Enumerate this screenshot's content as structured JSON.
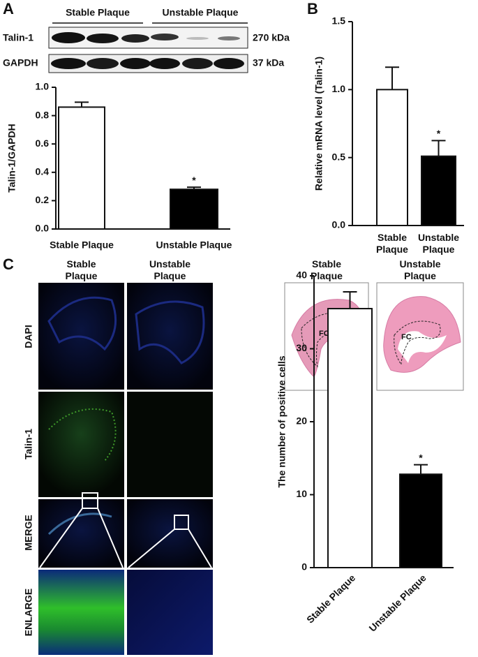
{
  "panels": [
    "A",
    "B",
    "C"
  ],
  "western_blot": {
    "groups": [
      "Stable Plaque",
      "Unstable Plaque"
    ],
    "rows": [
      "Talin-1",
      "GAPDH"
    ],
    "sizes": [
      "270 kDa",
      "37 kDa"
    ]
  },
  "microscopy": {
    "columns": [
      "Stable Plaque",
      "Unstable Plaque"
    ],
    "rows": [
      "DAPI",
      "Talin-1",
      "MERGE",
      "ENLARGE"
    ]
  },
  "histology": {
    "columns": [
      "Stable Plaque",
      "Unstable Plaque"
    ],
    "region_labels": [
      "FC",
      "FC"
    ]
  },
  "chart_data": [
    {
      "type": "bar",
      "y_label": "Talin-1/GAPDH",
      "categories": [
        "Stable Plaque",
        "Unstable Plaque"
      ],
      "values": [
        0.86,
        0.28
      ],
      "errors": [
        0.035,
        0.015
      ],
      "colors": [
        "#ffffff",
        "#000000"
      ],
      "annotation": "*",
      "ylim": [
        0,
        1
      ],
      "yticks": [
        {
          "value": 0,
          "label": "0.0"
        },
        0.2,
        0.4,
        0.6,
        0.8,
        {
          "value": 1,
          "label": "1.0"
        }
      ]
    },
    {
      "type": "bar",
      "y_label": "Relative mRNA level (Talin-1)",
      "categories": [
        "Stable Plaque",
        "Unstable Plaque"
      ],
      "values": [
        1.0,
        0.51
      ],
      "errors": [
        0.165,
        0.115
      ],
      "colors": [
        "#ffffff",
        "#000000"
      ],
      "annotation": "*",
      "ylim": [
        0,
        1.5
      ],
      "yticks": [
        {
          "value": 0,
          "label": "0.0"
        },
        0.5,
        {
          "value": 1,
          "label": "1.0"
        },
        1.5
      ]
    },
    {
      "type": "bar",
      "y_label": "The number of positive cells",
      "categories": [
        "Stable Plaque",
        "Unstable Plaque"
      ],
      "values": [
        35.5,
        12.8
      ],
      "errors": [
        2.3,
        1.3
      ],
      "colors": [
        "#ffffff",
        "#000000"
      ],
      "annotation": "*",
      "ylim": [
        0,
        40
      ],
      "yticks": [
        0,
        10,
        20,
        30,
        40
      ]
    }
  ]
}
